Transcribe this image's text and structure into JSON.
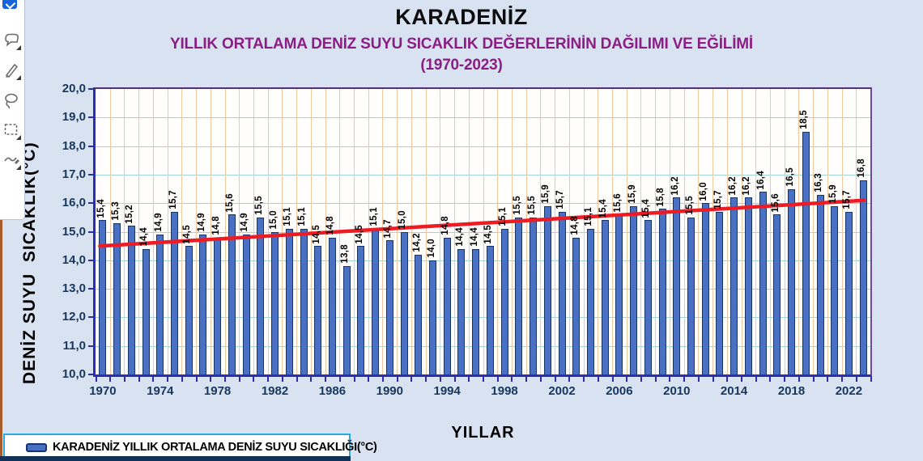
{
  "chart": {
    "title": "KARADENİZ",
    "subtitle": "YILLIK ORTALAMA DENİZ SUYU SICAKLIK DEĞERLERİNİN  DAĞILIMI VE EĞİLİMİ",
    "period": "(1970-2023)",
    "y_axis_title": "DENİZ SUYU  SICAKLIK(°C)",
    "x_axis_title": "YILLAR",
    "legend_label": "KARADENİZ YILLIK ORTALAMA DENİZ SUYU SICAKLIĞI(°C)"
  },
  "chart_data": {
    "type": "bar",
    "title": "KARADENİZ YILLIK ORTALAMA DENİZ SUYU SICAKLIK DEĞERLERİNİN DAĞILIMI VE EĞİLİMİ (1970-2023)",
    "xlabel": "YILLAR",
    "ylabel": "DENİZ SUYU SICAKLIK(°C)",
    "ylim": [
      10.0,
      20.0
    ],
    "ytick_step": 1.0,
    "xtick_every": 4,
    "decimal_separator": ",",
    "grid": true,
    "legend_position": "bottom-left",
    "categories": [
      1970,
      1971,
      1972,
      1973,
      1974,
      1975,
      1976,
      1977,
      1978,
      1979,
      1980,
      1981,
      1982,
      1983,
      1984,
      1985,
      1986,
      1987,
      1988,
      1989,
      1990,
      1991,
      1992,
      1993,
      1994,
      1995,
      1996,
      1997,
      1998,
      1999,
      2000,
      2001,
      2002,
      2003,
      2004,
      2005,
      2006,
      2007,
      2008,
      2009,
      2010,
      2011,
      2012,
      2013,
      2014,
      2015,
      2016,
      2017,
      2018,
      2019,
      2020,
      2021,
      2022,
      2023
    ],
    "values": [
      15.4,
      15.3,
      15.2,
      14.4,
      14.9,
      15.7,
      14.5,
      14.9,
      14.8,
      15.6,
      14.9,
      15.5,
      15.0,
      15.1,
      15.1,
      14.5,
      14.8,
      13.8,
      14.5,
      15.1,
      14.7,
      15.0,
      14.2,
      14.0,
      14.8,
      14.4,
      14.4,
      14.5,
      15.1,
      15.5,
      15.5,
      15.9,
      15.7,
      14.8,
      15.1,
      15.4,
      15.6,
      15.9,
      15.4,
      15.8,
      16.2,
      15.5,
      16.0,
      15.7,
      16.2,
      16.2,
      16.4,
      15.6,
      16.5,
      18.5,
      16.3,
      15.9,
      15.7,
      16.8
    ],
    "series_name": "KARADENİZ YILLIK ORTALAMA DENİZ SUYU SICAKLIĞI(°C)",
    "trend_line": {
      "start": 14.5,
      "end": 16.1,
      "color": "#ed1c24"
    },
    "colors": {
      "bar_fill": "#4a70c4",
      "bar_border": "#17356b",
      "h_gridline": "#9fd6da",
      "v_gridline": "#f0c9a2",
      "axis": "#2d2db4",
      "plot_border": "#53307c",
      "tick_label": "#17375e",
      "subtitle": "#8c1c86",
      "background": "#d9e2f0"
    }
  },
  "toolbar": {
    "icons": [
      {
        "name": "app-badge-icon"
      },
      {
        "name": "shape-callout-tool-icon"
      },
      {
        "name": "pencil-tool-icon"
      },
      {
        "name": "lasso-tool-icon"
      },
      {
        "name": "select-rectangle-tool-icon"
      },
      {
        "name": "ink-pen-tool-icon"
      }
    ]
  }
}
